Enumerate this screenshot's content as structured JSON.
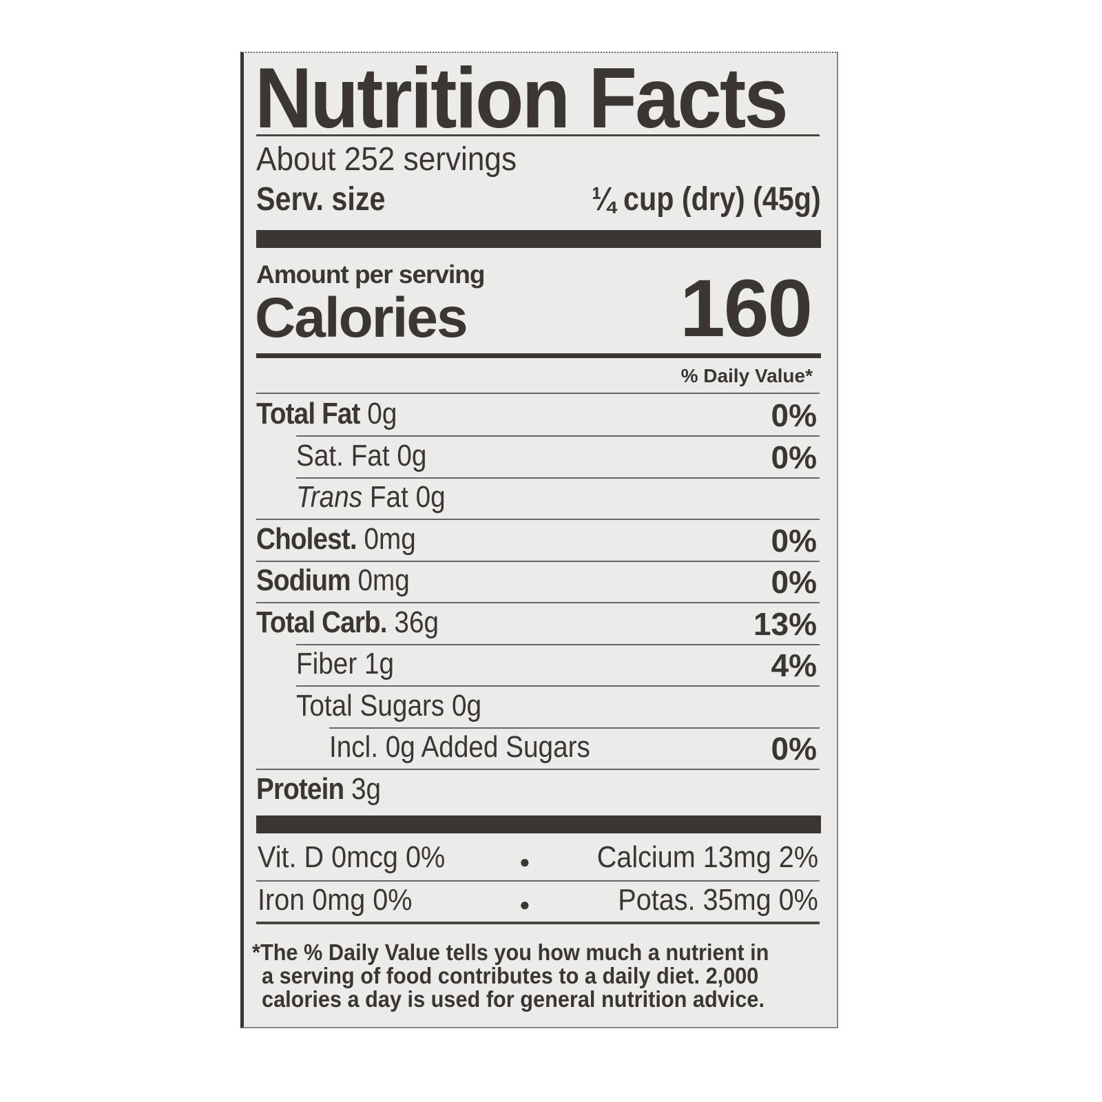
{
  "title": "Nutrition Facts",
  "servings": "About 252 servings",
  "serving_size": {
    "label": "Serv. size",
    "value": "¼ cup (dry) (45g)"
  },
  "amount_per_serving": "Amount per serving",
  "calories": {
    "label": "Calories",
    "value": "160"
  },
  "daily_value_header": "% Daily Value*",
  "nutrients": [
    {
      "label": "Total Fat",
      "amount": "0g",
      "dv": "0%",
      "bold": true,
      "indent": 0
    },
    {
      "label": "Sat. Fat",
      "amount": "0g",
      "dv": "0%",
      "bold": false,
      "indent": 1
    },
    {
      "label": "Trans",
      "amount": "Fat 0g",
      "dv": "",
      "bold": false,
      "indent": 1,
      "italic": true
    },
    {
      "label": "Cholest.",
      "amount": "0mg",
      "dv": "0%",
      "bold": true,
      "indent": 0
    },
    {
      "label": "Sodium",
      "amount": "0mg",
      "dv": "0%",
      "bold": true,
      "indent": 0
    },
    {
      "label": "Total Carb.",
      "amount": "36g",
      "dv": "13%",
      "bold": true,
      "indent": 0
    },
    {
      "label": "Fiber",
      "amount": "1g",
      "dv": "4%",
      "bold": false,
      "indent": 1
    },
    {
      "label": "Total Sugars",
      "amount": "0g",
      "dv": "",
      "bold": false,
      "indent": 1
    },
    {
      "label": "Incl. 0g Added Sugars",
      "amount": "",
      "dv": "0%",
      "bold": false,
      "indent": 2
    },
    {
      "label": "Protein",
      "amount": "3g",
      "dv": "",
      "bold": true,
      "indent": 0
    }
  ],
  "vitamins": [
    {
      "left": "Vit. D 0mcg 0%",
      "right": "Calcium 13mg 2%"
    },
    {
      "left": "Iron 0mg 0%",
      "right": "Potas. 35mg 0%"
    }
  ],
  "footnote": [
    "*The % Daily Value tells you how much a nutrient in",
    "a serving of food contributes to a daily diet. 2,000",
    "calories a day is used for general nutrition advice."
  ],
  "colors": {
    "ink": "#3b3633",
    "paper": "#ebebea"
  }
}
